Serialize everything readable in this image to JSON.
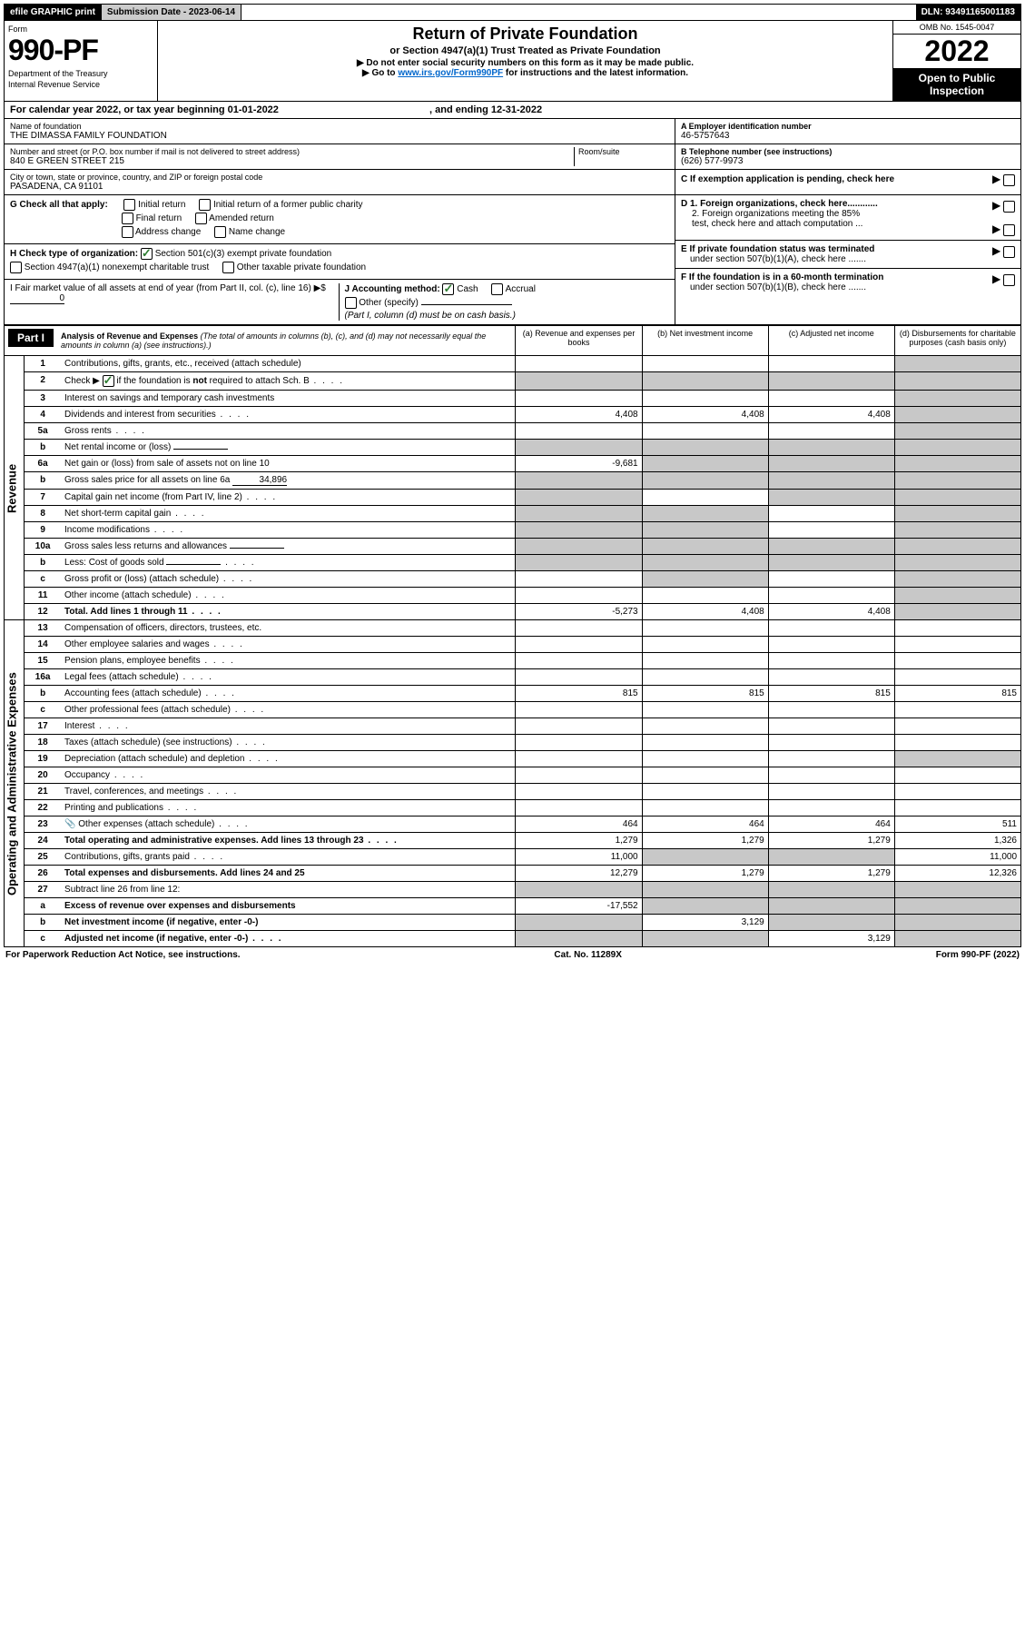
{
  "topbar": {
    "efile": "efile GRAPHIC print",
    "submission_label": "Submission Date - 2023-06-14",
    "dln": "DLN: 93491165001183"
  },
  "header": {
    "form_word": "Form",
    "form_number": "990-PF",
    "dept": "Department of the Treasury",
    "irs": "Internal Revenue Service",
    "title": "Return of Private Foundation",
    "subtitle": "or Section 4947(a)(1) Trust Treated as Private Foundation",
    "notice1": "▶ Do not enter social security numbers on this form as it may be made public.",
    "notice2_pre": "▶ Go to ",
    "notice2_link": "www.irs.gov/Form990PF",
    "notice2_post": " for instructions and the latest information.",
    "omb": "OMB No. 1545-0047",
    "year": "2022",
    "open1": "Open to Public",
    "open2": "Inspection"
  },
  "cal_year": {
    "pre": "For calendar year 2022, or tax year beginning 01-01-2022",
    "mid": ", and ending 12-31-2022"
  },
  "foundation": {
    "name_label": "Name of foundation",
    "name": "THE DIMASSA FAMILY FOUNDATION",
    "addr_label": "Number and street (or P.O. box number if mail is not delivered to street address)",
    "addr": "840 E GREEN STREET 215",
    "room_label": "Room/suite",
    "city_label": "City or town, state or province, country, and ZIP or foreign postal code",
    "city": "PASADENA, CA  91101"
  },
  "boxA": {
    "label": "A Employer identification number",
    "value": "46-5757643"
  },
  "boxB": {
    "label": "B Telephone number (see instructions)",
    "value": "(626) 577-9973"
  },
  "boxC": {
    "label": "C If exemption application is pending, check here"
  },
  "boxD": {
    "d1": "D 1. Foreign organizations, check here............",
    "d2a": "2. Foreign organizations meeting the 85%",
    "d2b": "test, check here and attach computation ..."
  },
  "boxE": {
    "e1": "E If private foundation status was terminated",
    "e2": "under section 507(b)(1)(A), check here ......."
  },
  "boxF": {
    "f1": "F If the foundation is in a 60-month termination",
    "f2": "under section 507(b)(1)(B), check here ......."
  },
  "G": {
    "label": "G Check all that apply:",
    "opts": [
      "Initial return",
      "Final return",
      "Address change",
      "Initial return of a former public charity",
      "Amended return",
      "Name change"
    ]
  },
  "H": {
    "label": "H Check type of organization:",
    "opt1": "Section 501(c)(3) exempt private foundation",
    "opt2": "Section 4947(a)(1) nonexempt charitable trust",
    "opt3": "Other taxable private foundation"
  },
  "I": {
    "label": "I Fair market value of all assets at end of year (from Part II, col. (c), line 16) ▶$",
    "value": "0"
  },
  "J": {
    "label": "J Accounting method:",
    "cash": "Cash",
    "accrual": "Accrual",
    "other": "Other (specify)",
    "note": "(Part I, column (d) must be on cash basis.)"
  },
  "part1": {
    "badge": "Part I",
    "title": "Analysis of Revenue and Expenses",
    "note": "(The total of amounts in columns (b), (c), and (d) may not necessarily equal the amounts in column (a) (see instructions).)",
    "cols": {
      "a": "(a) Revenue and expenses per books",
      "b": "(b) Net investment income",
      "c": "(c) Adjusted net income",
      "d": "(d) Disbursements for charitable purposes (cash basis only)"
    }
  },
  "side_labels": {
    "revenue": "Revenue",
    "expenses": "Operating and Administrative Expenses"
  },
  "rows": [
    {
      "n": "1",
      "d": "Contributions, gifts, grants, etc., received (attach schedule)",
      "a": "",
      "b": "",
      "c": "",
      "dd": "",
      "dShade": true
    },
    {
      "n": "2",
      "d": "Check ▶ ☑ if the foundation is not required to attach Sch. B",
      "dots": true,
      "a": "",
      "b": "",
      "c": "",
      "dd": "",
      "allShade": true
    },
    {
      "n": "3",
      "d": "Interest on savings and temporary cash investments",
      "a": "",
      "b": "",
      "c": "",
      "dd": "",
      "dShade": true
    },
    {
      "n": "4",
      "d": "Dividends and interest from securities",
      "dots": true,
      "a": "4,408",
      "b": "4,408",
      "c": "4,408",
      "dd": "",
      "dShade": true
    },
    {
      "n": "5a",
      "d": "Gross rents",
      "dots": true,
      "a": "",
      "b": "",
      "c": "",
      "dd": "",
      "dShade": true
    },
    {
      "n": "b",
      "d": "Net rental income or (loss)",
      "inline": "",
      "a": "",
      "b": "",
      "c": "",
      "dd": "",
      "allShade": true
    },
    {
      "n": "6a",
      "d": "Net gain or (loss) from sale of assets not on line 10",
      "a": "-9,681",
      "b": "",
      "c": "",
      "dd": "",
      "bcShade": true,
      "dShade": true
    },
    {
      "n": "b",
      "d": "Gross sales price for all assets on line 6a",
      "inline": "34,896",
      "a": "",
      "b": "",
      "c": "",
      "dd": "",
      "allShade": true
    },
    {
      "n": "7",
      "d": "Capital gain net income (from Part IV, line 2)",
      "dots": true,
      "a": "",
      "b": "",
      "c": "",
      "dd": "",
      "aShade": true,
      "cShade": true,
      "dShade": true
    },
    {
      "n": "8",
      "d": "Net short-term capital gain",
      "dots": true,
      "a": "",
      "b": "",
      "c": "",
      "dd": "",
      "aShade": true,
      "bShade": true,
      "dShade": true
    },
    {
      "n": "9",
      "d": "Income modifications",
      "dots": true,
      "a": "",
      "b": "",
      "c": "",
      "dd": "",
      "aShade": true,
      "bShade": true,
      "dShade": true
    },
    {
      "n": "10a",
      "d": "Gross sales less returns and allowances",
      "inline": "",
      "a": "",
      "b": "",
      "c": "",
      "dd": "",
      "allShade": true
    },
    {
      "n": "b",
      "d": "Less: Cost of goods sold",
      "dots": true,
      "inline": "",
      "a": "",
      "b": "",
      "c": "",
      "dd": "",
      "allShade": true
    },
    {
      "n": "c",
      "d": "Gross profit or (loss) (attach schedule)",
      "dots": true,
      "a": "",
      "b": "",
      "c": "",
      "dd": "",
      "bShade": true,
      "dShade": true
    },
    {
      "n": "11",
      "d": "Other income (attach schedule)",
      "dots": true,
      "a": "",
      "b": "",
      "c": "",
      "dd": "",
      "dShade": true
    },
    {
      "n": "12",
      "d": "Total. Add lines 1 through 11",
      "dots": true,
      "bold": true,
      "a": "-5,273",
      "b": "4,408",
      "c": "4,408",
      "dd": "",
      "dShade": true
    }
  ],
  "exp_rows": [
    {
      "n": "13",
      "d": "Compensation of officers, directors, trustees, etc.",
      "a": "",
      "b": "",
      "c": "",
      "dd": ""
    },
    {
      "n": "14",
      "d": "Other employee salaries and wages",
      "dots": true,
      "a": "",
      "b": "",
      "c": "",
      "dd": ""
    },
    {
      "n": "15",
      "d": "Pension plans, employee benefits",
      "dots": true,
      "a": "",
      "b": "",
      "c": "",
      "dd": ""
    },
    {
      "n": "16a",
      "d": "Legal fees (attach schedule)",
      "dots": true,
      "a": "",
      "b": "",
      "c": "",
      "dd": ""
    },
    {
      "n": "b",
      "d": "Accounting fees (attach schedule)",
      "dots": true,
      "a": "815",
      "b": "815",
      "c": "815",
      "dd": "815"
    },
    {
      "n": "c",
      "d": "Other professional fees (attach schedule)",
      "dots": true,
      "a": "",
      "b": "",
      "c": "",
      "dd": ""
    },
    {
      "n": "17",
      "d": "Interest",
      "dots": true,
      "a": "",
      "b": "",
      "c": "",
      "dd": ""
    },
    {
      "n": "18",
      "d": "Taxes (attach schedule) (see instructions)",
      "dots": true,
      "a": "",
      "b": "",
      "c": "",
      "dd": ""
    },
    {
      "n": "19",
      "d": "Depreciation (attach schedule) and depletion",
      "dots": true,
      "a": "",
      "b": "",
      "c": "",
      "dd": "",
      "dShade": true
    },
    {
      "n": "20",
      "d": "Occupancy",
      "dots": true,
      "a": "",
      "b": "",
      "c": "",
      "dd": ""
    },
    {
      "n": "21",
      "d": "Travel, conferences, and meetings",
      "dots": true,
      "a": "",
      "b": "",
      "c": "",
      "dd": ""
    },
    {
      "n": "22",
      "d": "Printing and publications",
      "dots": true,
      "a": "",
      "b": "",
      "c": "",
      "dd": ""
    },
    {
      "n": "23",
      "d": "Other expenses (attach schedule)",
      "dots": true,
      "icon": true,
      "a": "464",
      "b": "464",
      "c": "464",
      "dd": "511"
    },
    {
      "n": "24",
      "d": "Total operating and administrative expenses. Add lines 13 through 23",
      "dots": true,
      "bold": true,
      "a": "1,279",
      "b": "1,279",
      "c": "1,279",
      "dd": "1,326"
    },
    {
      "n": "25",
      "d": "Contributions, gifts, grants paid",
      "dots": true,
      "a": "11,000",
      "b": "",
      "c": "",
      "dd": "11,000",
      "bShade": true,
      "cShade": true
    },
    {
      "n": "26",
      "d": "Total expenses and disbursements. Add lines 24 and 25",
      "bold": true,
      "a": "12,279",
      "b": "1,279",
      "c": "1,279",
      "dd": "12,326"
    },
    {
      "n": "27",
      "d": "Subtract line 26 from line 12:",
      "a": "",
      "b": "",
      "c": "",
      "dd": "",
      "allShade": true
    },
    {
      "n": "a",
      "d": "Excess of revenue over expenses and disbursements",
      "bold": true,
      "a": "-17,552",
      "b": "",
      "c": "",
      "dd": "",
      "bShade": true,
      "cShade": true,
      "dShade": true
    },
    {
      "n": "b",
      "d": "Net investment income (if negative, enter -0-)",
      "bold": true,
      "a": "",
      "b": "3,129",
      "c": "",
      "dd": "",
      "aShade": true,
      "cShade": true,
      "dShade": true
    },
    {
      "n": "c",
      "d": "Adjusted net income (if negative, enter -0-)",
      "dots": true,
      "bold": true,
      "a": "",
      "b": "",
      "c": "3,129",
      "dd": "",
      "aShade": true,
      "bShade": true,
      "dShade": true
    }
  ],
  "footer": {
    "left": "For Paperwork Reduction Act Notice, see instructions.",
    "mid": "Cat. No. 11289X",
    "right": "Form 990-PF (2022)"
  }
}
